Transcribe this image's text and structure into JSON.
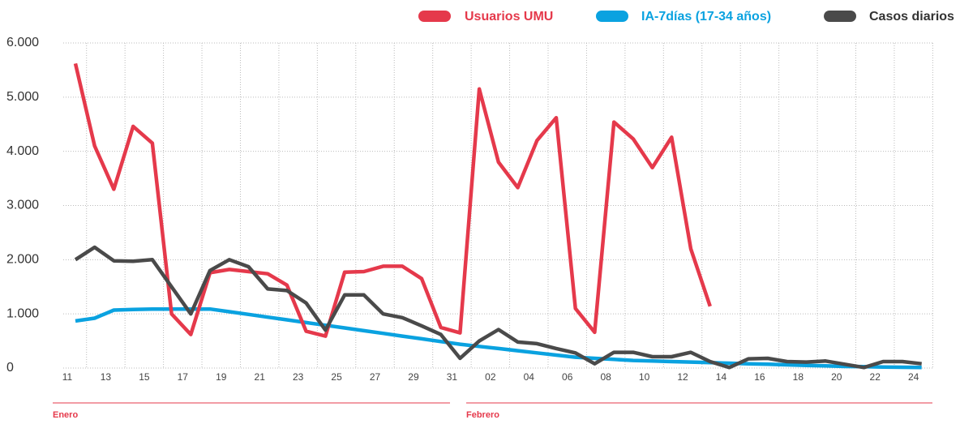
{
  "chart_data": {
    "type": "line",
    "categories": [
      "11",
      null,
      "13",
      null,
      "15",
      null,
      "17",
      null,
      "19",
      null,
      "21",
      null,
      "23",
      null,
      "25",
      null,
      "27",
      null,
      "29",
      null,
      "31",
      null,
      "02",
      null,
      "04",
      null,
      "06",
      null,
      "08",
      null,
      "10",
      null,
      "12",
      null,
      "14",
      null,
      "16",
      null,
      "18",
      null,
      "20",
      null,
      "22",
      null,
      "24"
    ],
    "month_labels": [
      "Enero",
      "Febrero"
    ],
    "series": [
      {
        "name": "Usuarios UMU",
        "color": "#e5394b",
        "values": [
          5620,
          4100,
          3300,
          4460,
          4150,
          1000,
          620,
          1760,
          1820,
          1780,
          1740,
          1530,
          680,
          590,
          1770,
          1780,
          1880,
          1880,
          1650,
          750,
          650,
          5150,
          3800,
          3330,
          4200,
          4620,
          1100,
          660,
          4540,
          4230,
          3700,
          4260,
          2200,
          1140,
          null,
          null,
          null,
          null,
          null,
          null,
          null,
          null,
          null,
          null,
          null
        ]
      },
      {
        "name": "IA-7días (17-34 años)",
        "color": "#0aa2e0",
        "values": [
          870,
          920,
          1070,
          1080,
          1090,
          1090,
          1090,
          1090,
          1040,
          990,
          940,
          890,
          840,
          790,
          740,
          690,
          640,
          590,
          540,
          490,
          440,
          400,
          360,
          320,
          280,
          240,
          200,
          180,
          160,
          140,
          130,
          120,
          110,
          100,
          90,
          80,
          70,
          60,
          50,
          40,
          30,
          25,
          20,
          15,
          10
        ]
      },
      {
        "name": "Casos diarios",
        "color": "#4a4a4a",
        "values": [
          2000,
          2230,
          1980,
          1970,
          2000,
          1500,
          1000,
          1800,
          2000,
          1870,
          1460,
          1430,
          1200,
          700,
          1350,
          1350,
          1000,
          930,
          780,
          620,
          180,
          500,
          710,
          480,
          450,
          360,
          280,
          80,
          290,
          290,
          210,
          210,
          290,
          120,
          10,
          170,
          180,
          120,
          110,
          130,
          70,
          10,
          120,
          120,
          80
        ]
      }
    ],
    "ylim": [
      0,
      6000
    ],
    "yticks": [
      0,
      {
        "value": 1000,
        "label": "1.000"
      },
      {
        "value": 2000,
        "label": "2.000"
      },
      {
        "value": 3000,
        "label": "3.000"
      },
      {
        "value": 4000,
        "label": "4.000"
      },
      {
        "value": 5000,
        "label": "5.000"
      },
      {
        "value": 6000,
        "label": "6.000"
      }
    ],
    "grid": true
  }
}
